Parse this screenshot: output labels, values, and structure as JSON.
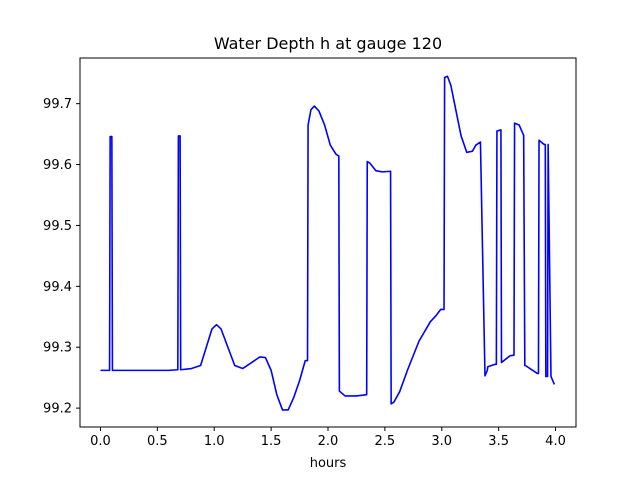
{
  "chart_data": {
    "type": "line",
    "title": "Water Depth h at gauge 120",
    "xlabel": "hours",
    "ylabel": "",
    "xlim": [
      -0.18,
      4.18
    ],
    "ylim": [
      99.169,
      99.775
    ],
    "xticks": [
      0.0,
      0.5,
      1.0,
      1.5,
      2.0,
      2.5,
      3.0,
      3.5,
      4.0
    ],
    "xtick_labels": [
      "0.0",
      "0.5",
      "1.0",
      "1.5",
      "2.0",
      "2.5",
      "3.0",
      "3.5",
      "4.0"
    ],
    "yticks": [
      99.2,
      99.3,
      99.4,
      99.5,
      99.6,
      99.7
    ],
    "ytick_labels": [
      "99.2",
      "99.3",
      "99.4",
      "99.5",
      "99.6",
      "99.7"
    ],
    "grid": false,
    "legend": "none",
    "series": [
      {
        "color": "#0000ff",
        "x": [
          0.0,
          0.08,
          0.085,
          0.1,
          0.105,
          0.2,
          0.4,
          0.6,
          0.68,
          0.685,
          0.7,
          0.705,
          0.8,
          0.88,
          0.93,
          0.98,
          1.02,
          1.06,
          1.12,
          1.18,
          1.25,
          1.33,
          1.4,
          1.45,
          1.5,
          1.55,
          1.6,
          1.65,
          1.7,
          1.75,
          1.8,
          1.82,
          1.825,
          1.85,
          1.88,
          1.92,
          1.97,
          2.02,
          2.07,
          2.095,
          2.1,
          2.15,
          2.25,
          2.34,
          2.345,
          2.37,
          2.42,
          2.48,
          2.55,
          2.555,
          2.58,
          2.63,
          2.7,
          2.8,
          2.9,
          2.95,
          2.99,
          3.02,
          3.025,
          3.05,
          3.08,
          3.12,
          3.17,
          3.22,
          3.27,
          3.3,
          3.34,
          3.38,
          3.4,
          3.405,
          3.47,
          3.48,
          3.485,
          3.52,
          3.525,
          3.6,
          3.635,
          3.64,
          3.68,
          3.72,
          3.73,
          3.735,
          3.84,
          3.85,
          3.855,
          3.9,
          3.91,
          3.915,
          3.93,
          3.935,
          3.96,
          3.99
        ],
        "values": [
          99.262,
          99.262,
          99.646,
          99.646,
          99.262,
          99.262,
          99.262,
          99.262,
          99.263,
          99.647,
          99.647,
          99.263,
          99.265,
          99.27,
          99.3,
          99.33,
          99.337,
          99.33,
          99.3,
          99.27,
          99.265,
          99.275,
          99.284,
          99.283,
          99.262,
          99.222,
          99.197,
          99.197,
          99.218,
          99.245,
          99.278,
          99.278,
          99.665,
          99.69,
          99.696,
          99.688,
          99.665,
          99.632,
          99.617,
          99.614,
          99.228,
          99.22,
          99.22,
          99.222,
          99.605,
          99.602,
          99.59,
          99.588,
          99.589,
          99.207,
          99.21,
          99.227,
          99.263,
          99.31,
          99.342,
          99.352,
          99.362,
          99.362,
          99.743,
          99.745,
          99.73,
          99.693,
          99.647,
          99.62,
          99.622,
          99.632,
          99.637,
          99.253,
          99.262,
          99.268,
          99.272,
          99.272,
          99.655,
          99.657,
          99.275,
          99.286,
          99.287,
          99.668,
          99.665,
          99.648,
          99.27,
          99.27,
          99.257,
          99.257,
          99.64,
          99.633,
          99.633,
          99.252,
          99.252,
          99.633,
          99.252,
          99.239
        ]
      }
    ]
  }
}
